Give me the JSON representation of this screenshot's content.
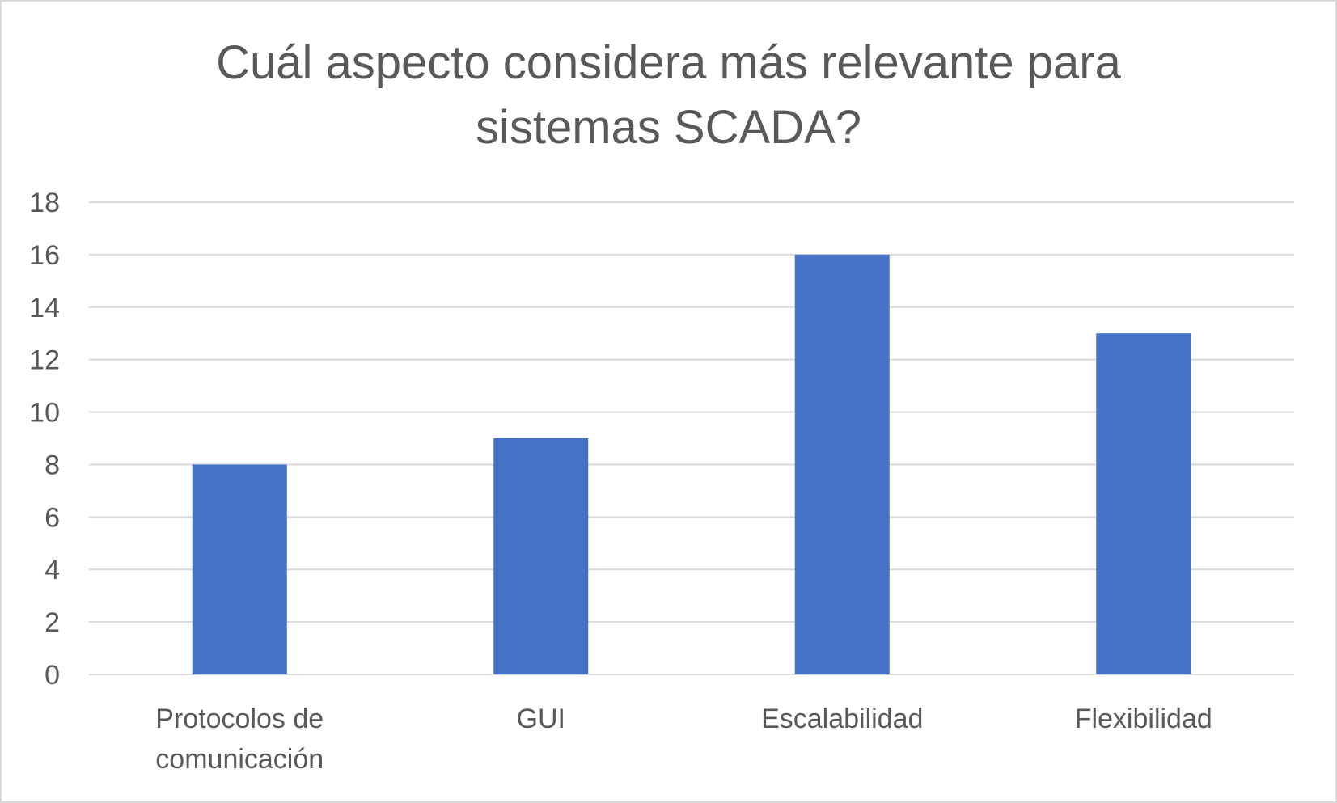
{
  "chart_data": {
    "type": "bar",
    "title_lines": [
      "Cuál aspecto considera más relevante para",
      "sistemas SCADA?"
    ],
    "categories": [
      [
        "Protocolos de",
        "comunicación"
      ],
      [
        "GUI"
      ],
      [
        "Escalabilidad"
      ],
      [
        "Flexibilidad"
      ]
    ],
    "values": [
      8,
      9,
      16,
      13
    ],
    "ylim": [
      0,
      18
    ],
    "yticks": [
      0,
      2,
      4,
      6,
      8,
      10,
      12,
      14,
      16,
      18
    ],
    "grid": true,
    "legend": "none",
    "bar_color": "#4472c4",
    "grid_color": "#d9d9d9",
    "text_color": "#595959"
  }
}
